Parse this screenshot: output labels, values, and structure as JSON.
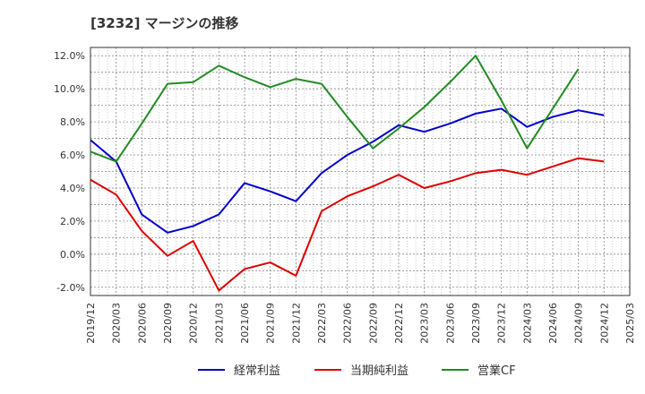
{
  "chart_data": {
    "type": "line",
    "title": "[3232]  マージンの推移",
    "xlabel": "",
    "ylabel": "",
    "ylim": [
      -2.5,
      12.5
    ],
    "y_ticks": [
      -2,
      0,
      2,
      4,
      6,
      8,
      10,
      12
    ],
    "y_tick_labels": [
      "-2.0%",
      "0.0%",
      "2.0%",
      "4.0%",
      "6.0%",
      "8.0%",
      "10.0%",
      "12.0%"
    ],
    "x_tick_labels": [
      "2019/12",
      "2020/03",
      "2020/06",
      "2020/09",
      "2020/12",
      "2021/03",
      "2021/06",
      "2021/09",
      "2021/12",
      "2022/03",
      "2022/06",
      "2022/09",
      "2022/12",
      "2023/03",
      "2023/06",
      "2023/09",
      "2023/12",
      "2024/03",
      "2024/06",
      "2024/09",
      "2024/12",
      "2025/03"
    ],
    "grid": true,
    "legend_position": "bottom",
    "series": [
      {
        "name": "経常利益",
        "color": "#0000cc",
        "values": [
          6.9,
          5.6,
          2.4,
          1.3,
          1.7,
          2.4,
          4.3,
          3.8,
          3.2,
          4.9,
          6.0,
          6.8,
          7.8,
          7.4,
          7.9,
          8.5,
          8.8,
          7.7,
          8.3,
          8.7,
          8.4,
          null
        ]
      },
      {
        "name": "当期純利益",
        "color": "#dd0000",
        "values": [
          4.5,
          3.6,
          1.4,
          -0.1,
          0.8,
          -2.2,
          -0.9,
          -0.5,
          -1.3,
          2.6,
          3.5,
          4.1,
          4.8,
          4.0,
          4.4,
          4.9,
          5.1,
          4.8,
          5.3,
          5.8,
          5.6,
          null
        ]
      },
      {
        "name": "営業CF",
        "color": "#228b22",
        "values": [
          6.2,
          5.6,
          7.9,
          10.3,
          10.4,
          11.4,
          10.7,
          10.1,
          10.6,
          10.3,
          8.3,
          6.4,
          7.6,
          8.9,
          10.4,
          12.0,
          9.3,
          6.4,
          8.8,
          11.2,
          null,
          null
        ]
      }
    ]
  }
}
